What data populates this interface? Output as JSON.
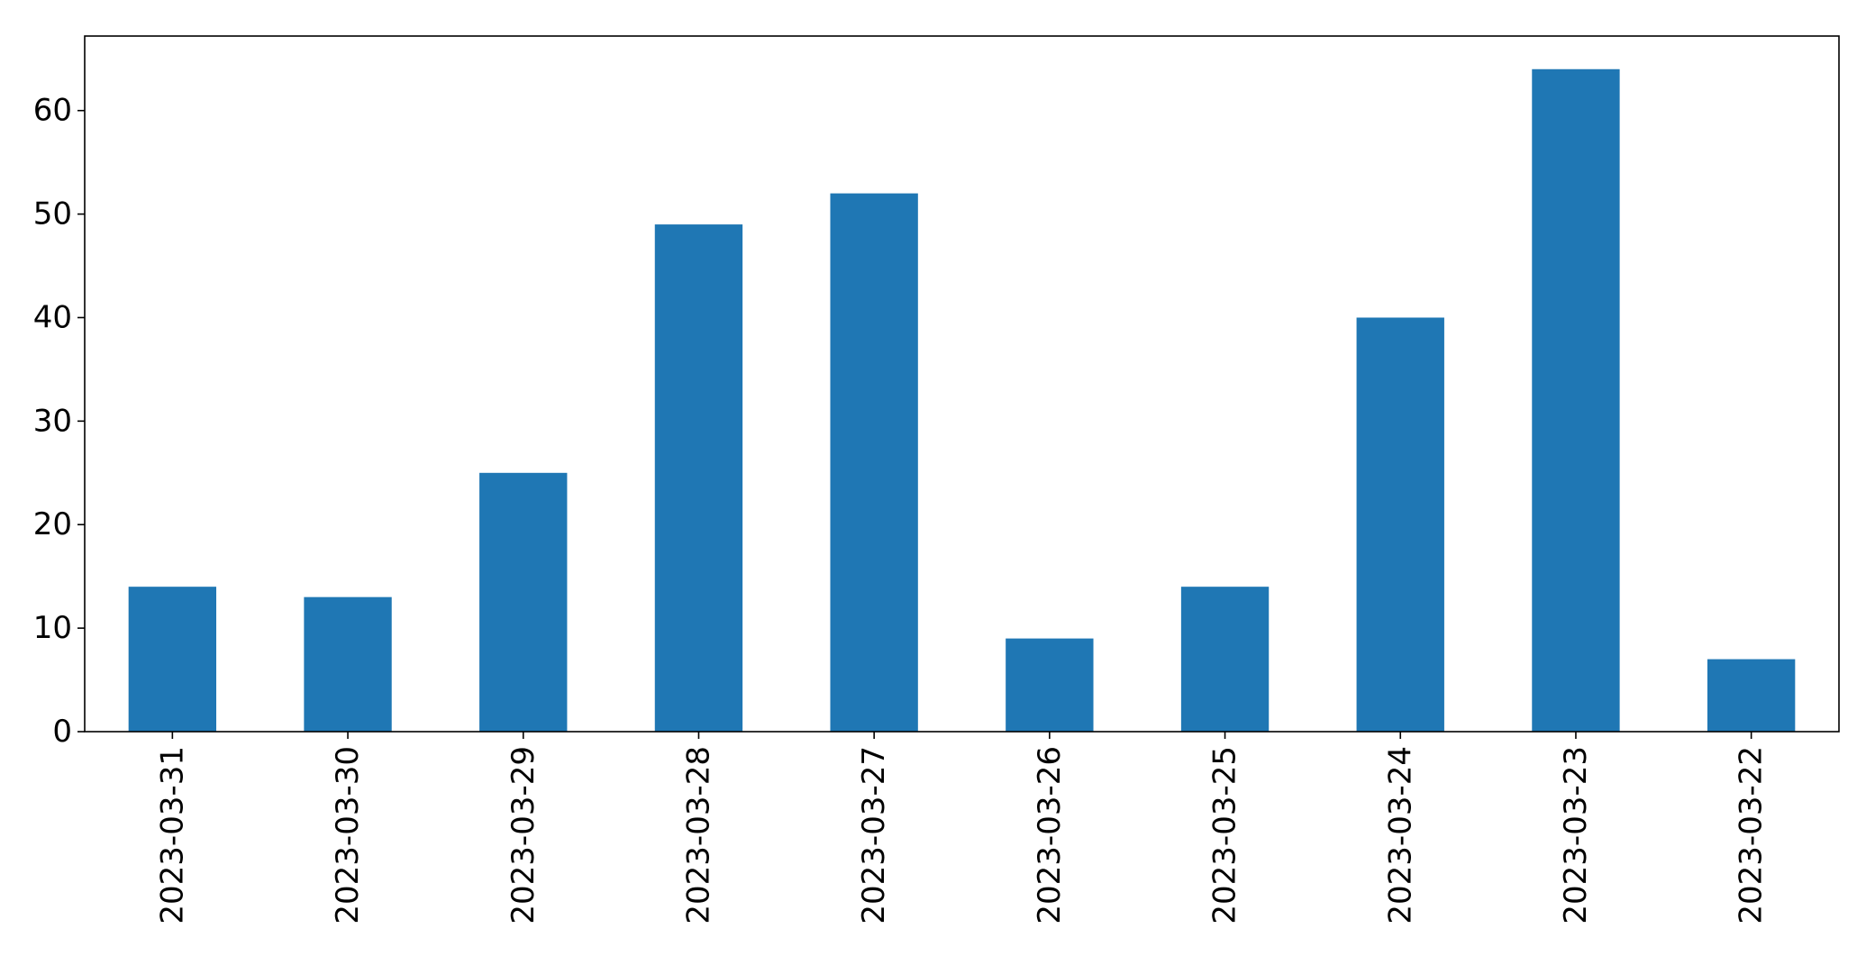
{
  "chart_data": {
    "type": "bar",
    "title": "",
    "xlabel": "",
    "ylabel": "",
    "categories": [
      "2023-03-31",
      "2023-03-30",
      "2023-03-29",
      "2023-03-28",
      "2023-03-27",
      "2023-03-26",
      "2023-03-25",
      "2023-03-24",
      "2023-03-23",
      "2023-03-22"
    ],
    "values": [
      14,
      13,
      25,
      49,
      52,
      9,
      14,
      40,
      64,
      7
    ],
    "ylim": [
      0,
      67.2
    ],
    "yticks": [
      0,
      10,
      20,
      30,
      40,
      50,
      60
    ],
    "grid": false,
    "legend": "none",
    "bar_color": "#1f77b4"
  }
}
